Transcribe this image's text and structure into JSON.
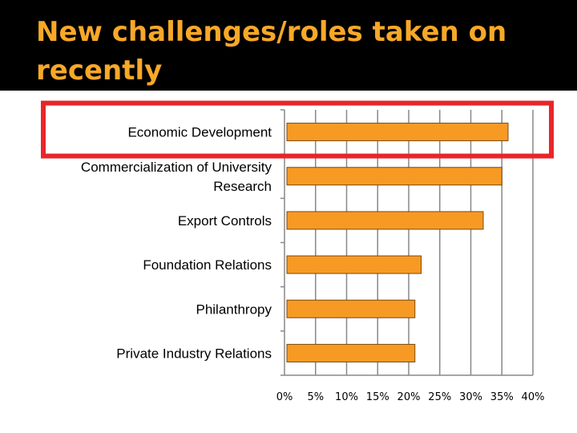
{
  "slide": {
    "title": "New challenges/roles taken on recently"
  },
  "colors": {
    "title_bg": "#000000",
    "title_text": "#f7a828",
    "bar_fill": "#f79a24",
    "bar_stroke": "#7a4a10",
    "grid": "#888888",
    "highlight": "#e8262a"
  },
  "chart_data": {
    "type": "bar",
    "orientation": "horizontal",
    "title": "",
    "xlabel": "",
    "ylabel": "",
    "grid": true,
    "xlim": [
      0,
      40
    ],
    "x_tick_values": [
      0,
      5,
      10,
      15,
      20,
      25,
      30,
      35,
      40
    ],
    "x_tick_labels": [
      "0%",
      "5%",
      "10%",
      "15%",
      "20%",
      "25%",
      "30%",
      "35%",
      "40%"
    ],
    "categories": [
      "Economic Development",
      "Commercialization of University Research",
      "Export Controls",
      "Foundation Relations",
      "Philanthropy",
      "Private Industry Relations"
    ],
    "category_lines": [
      [
        "Economic Development"
      ],
      [
        "Commercialization of University",
        "Research"
      ],
      [
        "Export Controls"
      ],
      [
        "Foundation Relations"
      ],
      [
        "Philanthropy"
      ],
      [
        "Private Industry Relations"
      ]
    ],
    "values": [
      36,
      35,
      32,
      22,
      21,
      21
    ],
    "highlighted_category": "Economic Development"
  }
}
